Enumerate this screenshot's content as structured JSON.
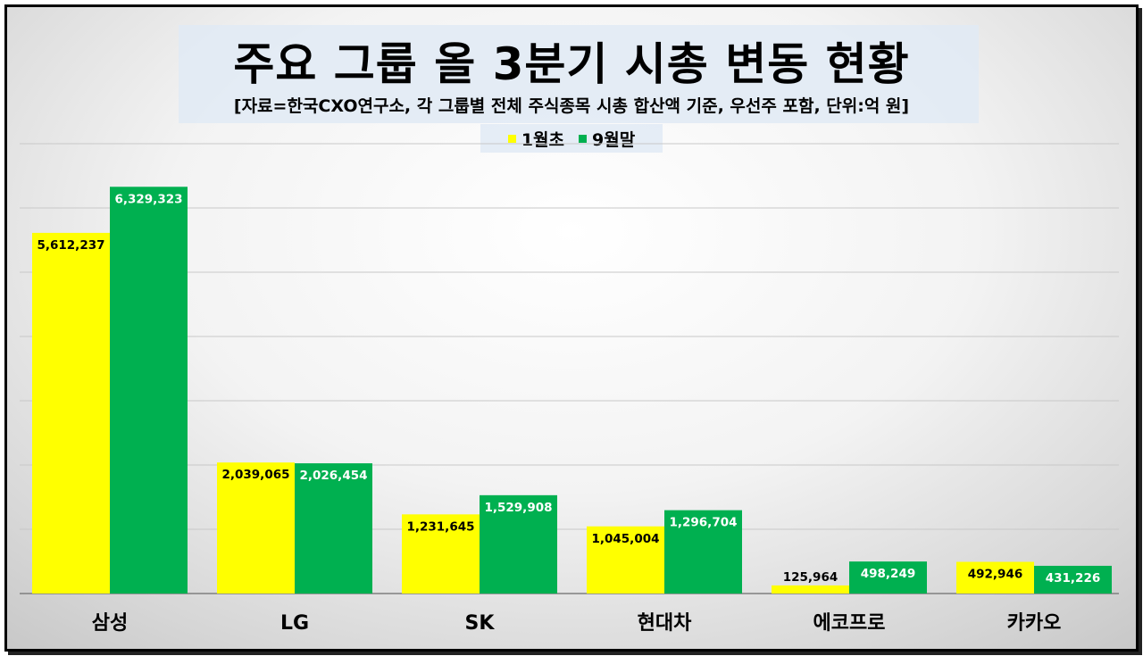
{
  "colors": {
    "series_1": "#ffff00",
    "series_2": "#00b050",
    "gridline": "#c8c8c8",
    "axis": "#7f7f7f"
  },
  "chart_data": {
    "type": "bar",
    "title": "주요 그룹 올 3분기 시총 변동 현황",
    "subtitle": "[자료=한국CXO연구소, 각 그룹별 전체 주식종목 시총 합산액 기준, 우선주 포함, 단위:억 원]",
    "categories": [
      "삼성",
      "LG",
      "SK",
      "현대차",
      "에코프로",
      "카카오"
    ],
    "series": [
      {
        "name": "1월초",
        "values": [
          5612237,
          2039065,
          1231645,
          1045004,
          125964,
          492946
        ],
        "labels": [
          "5,612,237",
          "2,039,065",
          "1,231,645",
          "1,045,004",
          "125,964",
          "492,946"
        ]
      },
      {
        "name": "9월말",
        "values": [
          6329323,
          2026454,
          1529908,
          1296704,
          498249,
          431226
        ],
        "labels": [
          "6,329,323",
          "2,026,454",
          "1,529,908",
          "1,296,704",
          "498,249",
          "431,226"
        ]
      }
    ],
    "ylim": [
      0,
      7000000
    ],
    "grid": true,
    "legend_position": "top-center"
  }
}
